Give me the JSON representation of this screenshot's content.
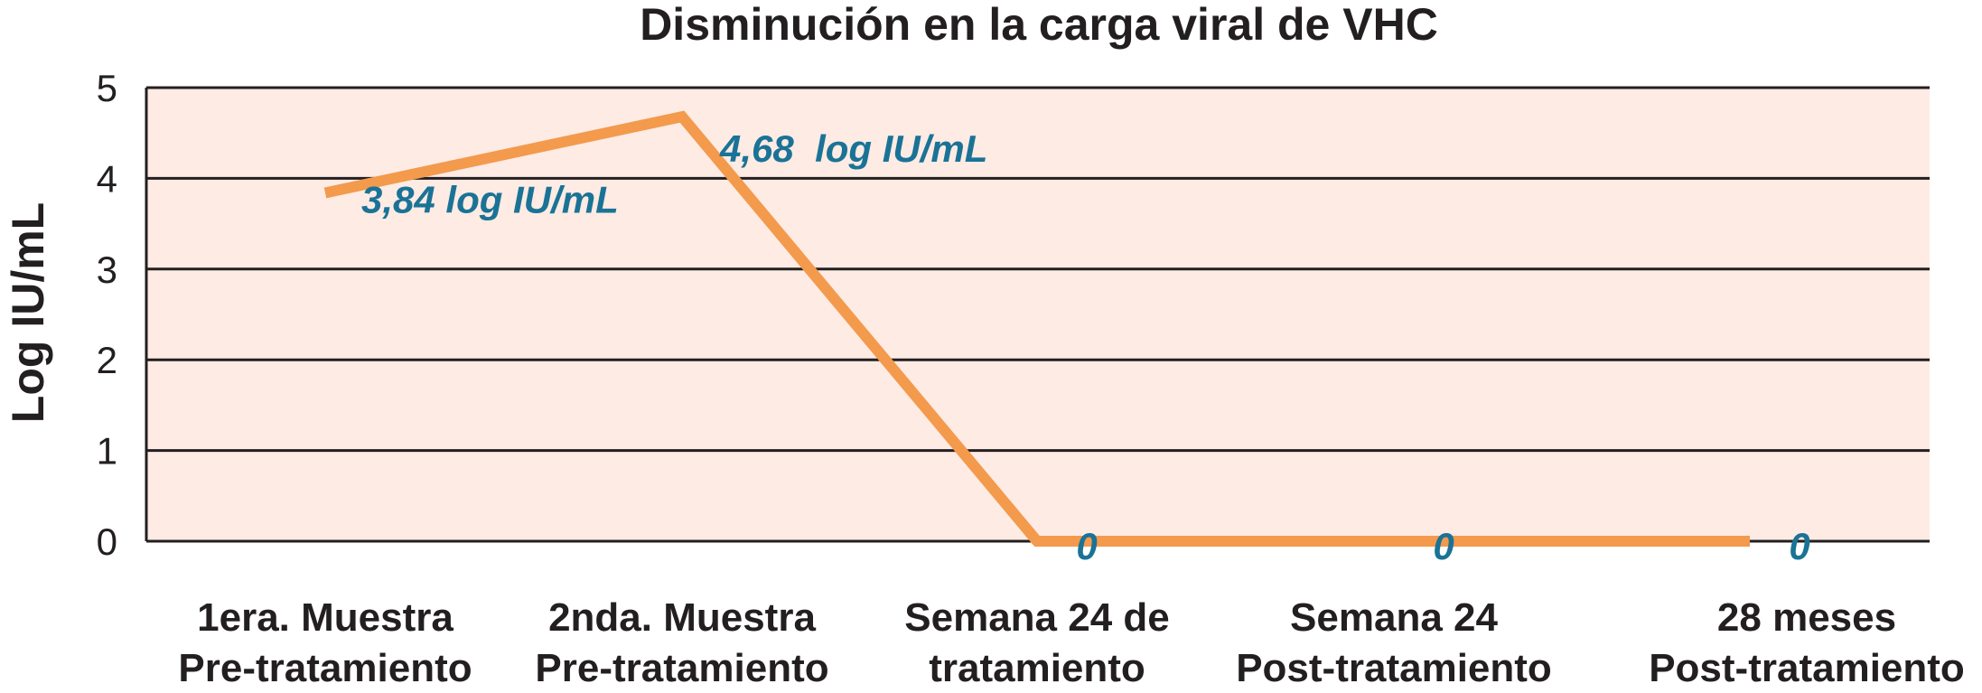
{
  "chart_data": {
    "type": "line",
    "title": "Disminución en la carga viral de VHC",
    "xlabel": "",
    "ylabel": "Log IU/mL",
    "ylim": [
      0,
      5
    ],
    "yticks": [
      0,
      1,
      2,
      3,
      4,
      5
    ],
    "grid": true,
    "background_color": "#fdebe4",
    "categories": [
      [
        "1era. Muestra",
        "Pre-tratamiento"
      ],
      [
        "2nda. Muestra",
        "Pre-tratamiento"
      ],
      [
        "Semana 24 de",
        "tratamiento"
      ],
      [
        "Semana 24",
        "Post-tratamiento"
      ],
      [
        "28 meses",
        "Post-tratamiento"
      ]
    ],
    "series": [
      {
        "color": "#f39a4d",
        "values": [
          3.84,
          4.68,
          0,
          0,
          0
        ],
        "data_labels": [
          "3,84 log IU/mL",
          "4,68  log IU/mL",
          "0",
          "0",
          "0"
        ]
      }
    ]
  }
}
